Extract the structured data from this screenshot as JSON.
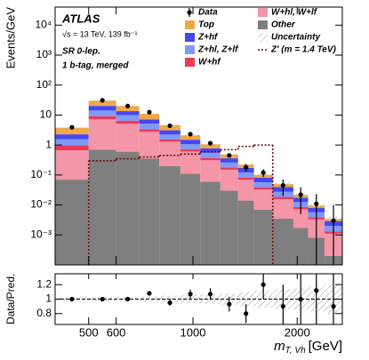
{
  "chart_data": {
    "type": "histogram",
    "experiment": "ATLAS",
    "energy_label": "√s = 13 TeV, 139 fb⁻¹",
    "region": "SR 0-lep.",
    "selection": "1 b-tag, merged",
    "y_label": "Events/GeV",
    "x_label": {
      "symbol": "m",
      "subscript": "T, Vh",
      "unit": "[GeV]"
    },
    "log_x": true,
    "log_y": true,
    "bins": [
      400,
      500,
      600,
      700,
      800,
      920,
      1050,
      1200,
      1350,
      1500,
      1700,
      1950,
      2150,
      2400,
      2700
    ],
    "xlim": [
      400,
      2700
    ],
    "xticks": [
      500,
      600,
      1000,
      2000
    ],
    "ylim": [
      0.0001,
      40000
    ],
    "yticks": [
      {
        "value": 0.001,
        "label": "10⁻³"
      },
      {
        "value": 0.01,
        "label": "10⁻²"
      },
      {
        "value": 0.1,
        "label": "10⁻¹"
      },
      1,
      10,
      {
        "value": 100,
        "label": "10²"
      },
      {
        "value": 1000,
        "label": "10³"
      },
      {
        "value": 10000,
        "label": "10⁴"
      }
    ],
    "series": [
      {
        "name": "Top",
        "color": "#f0a848",
        "values": [
          1.5,
          10,
          6.5,
          3.8,
          1.5,
          0.6,
          0.28,
          0.12,
          0.05,
          0.02,
          0.01,
          0.004,
          0.0016,
          0.0005
        ]
      },
      {
        "name": "Z+hf",
        "color": "#4646f5",
        "values": [
          0.7,
          6,
          3.5,
          2,
          0.85,
          0.42,
          0.22,
          0.1,
          0.05,
          0.024,
          0.012,
          0.005,
          0.0022,
          0.0009
        ]
      },
      {
        "name": "Z+hl, Z+lf",
        "color": "#7f9af8",
        "values": [
          0.6,
          5,
          3.5,
          1.8,
          0.7,
          0.35,
          0.18,
          0.08,
          0.04,
          0.018,
          0.009,
          0.004,
          0.0018,
          0.0007
        ]
      },
      {
        "name": "W+hf",
        "color": "#ee3a5a",
        "values": [
          0.3,
          2,
          1.4,
          0.6,
          0.25,
          0.12,
          0.06,
          0.03,
          0.013,
          0.006,
          0.003,
          0.0013,
          0.0006,
          0.0002
        ]
      },
      {
        "name": "W+hl, W+lf",
        "color": "#f496a8",
        "values": [
          0.6,
          6.5,
          4.5,
          2.4,
          1.1,
          0.5,
          0.25,
          0.12,
          0.055,
          0.026,
          0.012,
          0.0055,
          0.0025,
          0.0009
        ]
      },
      {
        "name": "Other",
        "color": "#7f7f7f",
        "values": [
          0.07,
          0.7,
          0.6,
          0.35,
          0.2,
          0.11,
          0.06,
          0.03,
          0.014,
          0.007,
          0.0035,
          0.0017,
          0.0008,
          0.0002
        ]
      }
    ],
    "data": {
      "name": "Data",
      "color": "#000000",
      "values": [
        3.9,
        31,
        20,
        12.5,
        4.4,
        2.3,
        1.15,
        0.45,
        0.18,
        0.12,
        0.045,
        0.022,
        0.011,
        0.003
      ],
      "errors": [
        0.2,
        0.6,
        0.5,
        0.4,
        0.25,
        0.17,
        0.12,
        0.07,
        0.05,
        0.035,
        0.025,
        0.017,
        0.012,
        0.007
      ]
    },
    "uncertainty": {
      "name": "Uncertainty",
      "values": [
        0.03,
        0.03,
        0.03,
        0.04,
        0.05,
        0.06,
        0.07,
        0.08,
        0.1,
        0.12,
        0.14,
        0.15,
        0.17,
        0.2
      ]
    },
    "signal": {
      "name": "Z' (m = 1.4 TeV)",
      "color": "#6e0a0a",
      "values": [
        0,
        0.3,
        0.35,
        0.4,
        0.45,
        0.5,
        0.6,
        0.7,
        0.9,
        1,
        0,
        0,
        0,
        0
      ]
    },
    "ratio": {
      "y_label": "Data/Pred.",
      "ylim": [
        0.65,
        1.35
      ],
      "yticks": [
        0.8,
        1,
        1.2
      ],
      "values": [
        1,
        1,
        1,
        1.08,
        0.95,
        1.07,
        1.07,
        0.93,
        0.8,
        1.2,
        0.9,
        1,
        1.12,
        0.9
      ],
      "errors": [
        0.02,
        0.02,
        0.03,
        0.03,
        0.04,
        0.06,
        0.08,
        0.1,
        0.13,
        0.2,
        0.3,
        0.4,
        0.5,
        0.6
      ]
    }
  }
}
